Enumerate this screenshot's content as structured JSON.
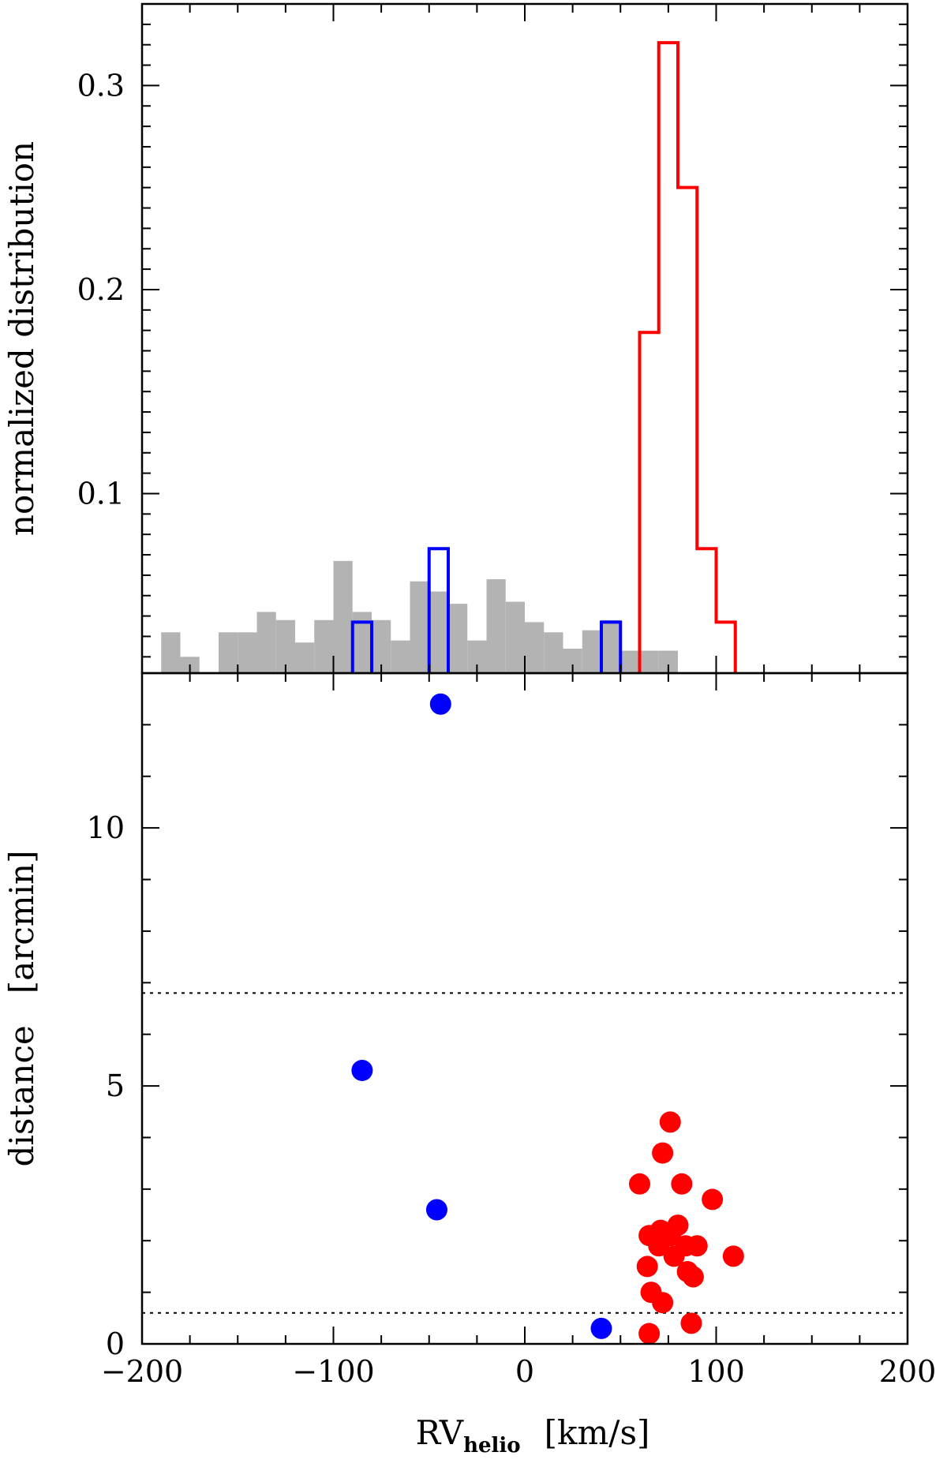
{
  "chart_data": [
    {
      "type": "histogram",
      "panel": "top",
      "ylabel": "normalized distribution",
      "xlim": [
        -200,
        200
      ],
      "ylim": [
        0.012,
        0.34
      ],
      "yticks_labeled": [
        0.1,
        0.2,
        0.3
      ],
      "yticks_label_text": [
        "0.1",
        "0.2",
        "0.3"
      ],
      "bin_width": 10,
      "series": [
        {
          "name": "",
          "style": "filled",
          "color": "#b3b3b3",
          "bins": [
            {
              "x0": -190,
              "y": 0.032
            },
            {
              "x0": -180,
              "y": 0.02
            },
            {
              "x0": -160,
              "y": 0.032
            },
            {
              "x0": -150,
              "y": 0.032
            },
            {
              "x0": -140,
              "y": 0.042
            },
            {
              "x0": -130,
              "y": 0.038
            },
            {
              "x0": -120,
              "y": 0.027
            },
            {
              "x0": -110,
              "y": 0.038
            },
            {
              "x0": -100,
              "y": 0.067
            },
            {
              "x0": -90,
              "y": 0.042
            },
            {
              "x0": -80,
              "y": 0.038
            },
            {
              "x0": -70,
              "y": 0.028
            },
            {
              "x0": -60,
              "y": 0.057
            },
            {
              "x0": -50,
              "y": 0.052
            },
            {
              "x0": -40,
              "y": 0.046
            },
            {
              "x0": -30,
              "y": 0.028
            },
            {
              "x0": -20,
              "y": 0.058
            },
            {
              "x0": -10,
              "y": 0.047
            },
            {
              "x0": 0,
              "y": 0.037
            },
            {
              "x0": 10,
              "y": 0.032
            },
            {
              "x0": 20,
              "y": 0.024
            },
            {
              "x0": 30,
              "y": 0.033
            },
            {
              "x0": 40,
              "y": 0.038
            },
            {
              "x0": 50,
              "y": 0.023
            },
            {
              "x0": 60,
              "y": 0.023
            },
            {
              "x0": 70,
              "y": 0.023
            }
          ]
        },
        {
          "name": "",
          "style": "step",
          "color": "#0000ff",
          "bins": [
            {
              "x0": -90,
              "y": 0.037
            },
            {
              "x0": -50,
              "y": 0.073
            },
            {
              "x0": 40,
              "y": 0.037
            }
          ]
        },
        {
          "name": "",
          "style": "step",
          "color": "#ff0000",
          "bins": [
            {
              "x0": 60,
              "y": 0.179
            },
            {
              "x0": 70,
              "y": 0.321
            },
            {
              "x0": 80,
              "y": 0.25
            },
            {
              "x0": 90,
              "y": 0.073
            },
            {
              "x0": 100,
              "y": 0.037
            }
          ]
        }
      ]
    },
    {
      "type": "scatter",
      "panel": "bottom",
      "xlabel_main": "RV",
      "xlabel_sub": "helio",
      "xlabel_unit": "[km/s]",
      "ylabel": "distance   [arcmin]",
      "xlim": [
        -200,
        200
      ],
      "ylim": [
        0,
        13
      ],
      "xticks_labeled": [
        -200,
        -100,
        0,
        100,
        200
      ],
      "xticks_label_text": [
        "−200",
        "−100",
        "0",
        "100",
        "200"
      ],
      "yticks_labeled": [
        0,
        5,
        10
      ],
      "yticks_label_text": [
        "0",
        "5",
        "10"
      ],
      "hlines_dotted": [
        6.8,
        0.6
      ],
      "series": [
        {
          "name": "",
          "color": "#0000ff",
          "points": [
            {
              "x": -44,
              "y": 12.4
            },
            {
              "x": -85,
              "y": 5.3
            },
            {
              "x": -46,
              "y": 2.6
            },
            {
              "x": 40,
              "y": 0.3
            }
          ]
        },
        {
          "name": "",
          "color": "#ff0000",
          "points": [
            {
              "x": 76,
              "y": 4.3
            },
            {
              "x": 72,
              "y": 3.7
            },
            {
              "x": 60,
              "y": 3.1
            },
            {
              "x": 82,
              "y": 3.1
            },
            {
              "x": 98,
              "y": 2.8
            },
            {
              "x": 80,
              "y": 2.3
            },
            {
              "x": 71,
              "y": 2.2
            },
            {
              "x": 65,
              "y": 2.1
            },
            {
              "x": 76,
              "y": 2.1
            },
            {
              "x": 70,
              "y": 1.9
            },
            {
              "x": 84,
              "y": 1.9
            },
            {
              "x": 90,
              "y": 1.9
            },
            {
              "x": 78,
              "y": 1.7
            },
            {
              "x": 109,
              "y": 1.7
            },
            {
              "x": 64,
              "y": 1.5
            },
            {
              "x": 85,
              "y": 1.4
            },
            {
              "x": 88,
              "y": 1.3
            },
            {
              "x": 66,
              "y": 1.0
            },
            {
              "x": 72,
              "y": 0.8
            },
            {
              "x": 87,
              "y": 0.4
            },
            {
              "x": 65,
              "y": 0.2
            }
          ]
        }
      ]
    }
  ]
}
